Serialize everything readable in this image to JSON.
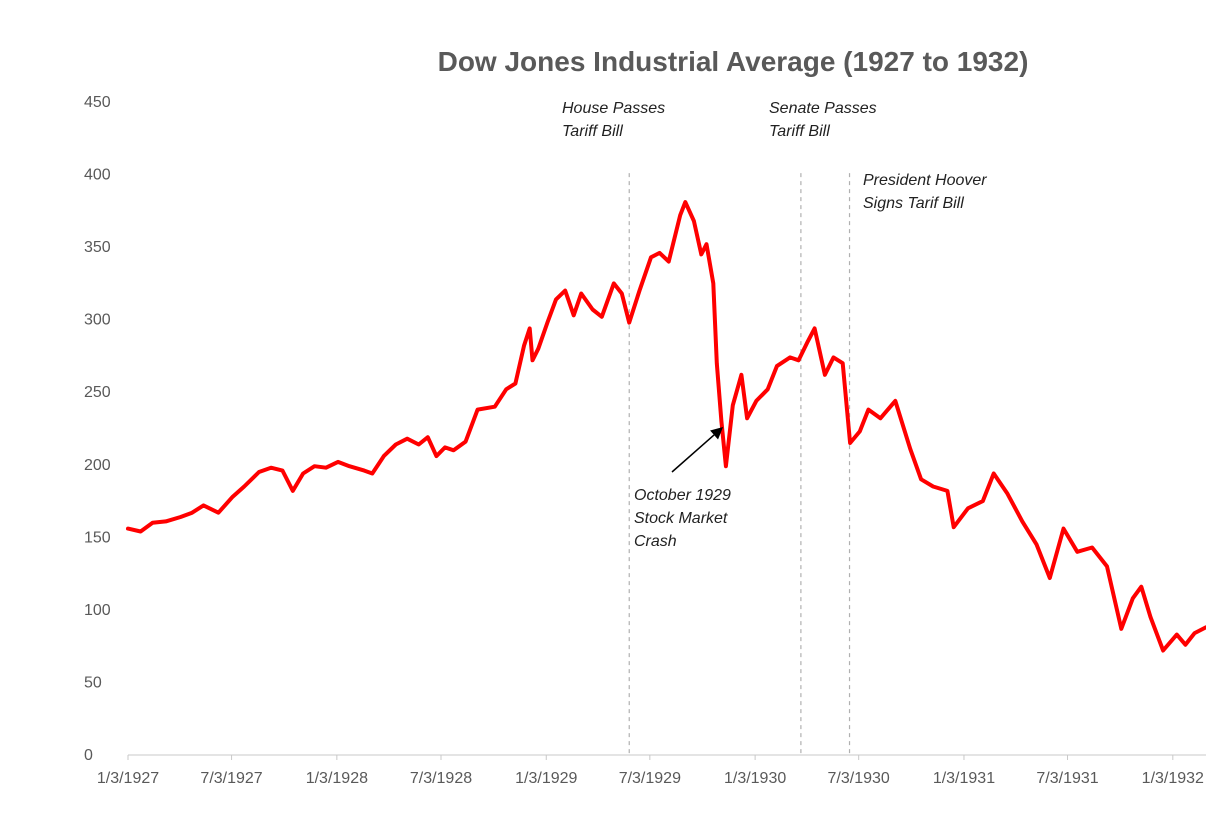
{
  "chart_data": {
    "type": "line",
    "title": "Dow Jones Industrial Average (1927 to 1932)",
    "xlabel": "",
    "ylabel": "",
    "ylim": [
      0,
      450
    ],
    "yticks": [
      "0",
      "50",
      "100",
      "150",
      "200",
      "250",
      "300",
      "350",
      "400",
      "450"
    ],
    "xlim": [
      "1927-01-03",
      "1932-03-01"
    ],
    "xticks": [
      {
        "date": "1927-01-03",
        "label": "1/3/1927"
      },
      {
        "date": "1927-07-03",
        "label": "7/3/1927"
      },
      {
        "date": "1928-01-03",
        "label": "1/3/1928"
      },
      {
        "date": "1928-07-03",
        "label": "7/3/1928"
      },
      {
        "date": "1929-01-03",
        "label": "1/3/1929"
      },
      {
        "date": "1929-07-03",
        "label": "7/3/1929"
      },
      {
        "date": "1930-01-03",
        "label": "1/3/1930"
      },
      {
        "date": "1930-07-03",
        "label": "7/3/1930"
      },
      {
        "date": "1931-01-03",
        "label": "1/3/1931"
      },
      {
        "date": "1931-07-03",
        "label": "7/3/1931"
      },
      {
        "date": "1932-01-03",
        "label": "1/3/1932"
      }
    ],
    "grid": false,
    "line_color": "#ff0000",
    "series": [
      {
        "points": [
          [
            "1927-01-03",
            156
          ],
          [
            "1927-01-25",
            154
          ],
          [
            "1927-02-15",
            160
          ],
          [
            "1927-03-10",
            161
          ],
          [
            "1927-04-05",
            164
          ],
          [
            "1927-04-25",
            167
          ],
          [
            "1927-05-15",
            172
          ],
          [
            "1927-06-10",
            167
          ],
          [
            "1927-07-05",
            178
          ],
          [
            "1927-07-25",
            185
          ],
          [
            "1927-08-20",
            195
          ],
          [
            "1927-09-10",
            198
          ],
          [
            "1927-09-30",
            196
          ],
          [
            "1927-10-18",
            182
          ],
          [
            "1927-11-05",
            194
          ],
          [
            "1927-11-25",
            199
          ],
          [
            "1927-12-15",
            198
          ],
          [
            "1928-01-05",
            202
          ],
          [
            "1928-01-25",
            199
          ],
          [
            "1928-02-20",
            196
          ],
          [
            "1928-03-05",
            194
          ],
          [
            "1928-03-25",
            206
          ],
          [
            "1928-04-15",
            214
          ],
          [
            "1928-05-05",
            218
          ],
          [
            "1928-05-25",
            214
          ],
          [
            "1928-06-10",
            219
          ],
          [
            "1928-06-25",
            206
          ],
          [
            "1928-07-10",
            212
          ],
          [
            "1928-07-25",
            210
          ],
          [
            "1928-08-15",
            216
          ],
          [
            "1928-09-05",
            238
          ],
          [
            "1928-10-05",
            240
          ],
          [
            "1928-10-25",
            252
          ],
          [
            "1928-11-10",
            256
          ],
          [
            "1928-11-25",
            282
          ],
          [
            "1928-12-05",
            294
          ],
          [
            "1928-12-10",
            272
          ],
          [
            "1928-12-20",
            280
          ],
          [
            "1929-01-05",
            298
          ],
          [
            "1929-01-20",
            314
          ],
          [
            "1929-02-05",
            320
          ],
          [
            "1929-02-20",
            303
          ],
          [
            "1929-03-05",
            318
          ],
          [
            "1929-03-25",
            307
          ],
          [
            "1929-04-10",
            302
          ],
          [
            "1929-05-01",
            325
          ],
          [
            "1929-05-15",
            318
          ],
          [
            "1929-05-28",
            298
          ],
          [
            "1929-06-15",
            320
          ],
          [
            "1929-07-05",
            343
          ],
          [
            "1929-07-20",
            346
          ],
          [
            "1929-08-05",
            340
          ],
          [
            "1929-08-25",
            372
          ],
          [
            "1929-09-03",
            381
          ],
          [
            "1929-09-18",
            368
          ],
          [
            "1929-10-01",
            345
          ],
          [
            "1929-10-10",
            352
          ],
          [
            "1929-10-22",
            325
          ],
          [
            "1929-10-28",
            270
          ],
          [
            "1929-11-05",
            230
          ],
          [
            "1929-11-13",
            199
          ],
          [
            "1929-11-25",
            241
          ],
          [
            "1929-12-10",
            262
          ],
          [
            "1929-12-20",
            232
          ],
          [
            "1930-01-05",
            244
          ],
          [
            "1930-01-25",
            252
          ],
          [
            "1930-02-10",
            268
          ],
          [
            "1930-03-05",
            274
          ],
          [
            "1930-03-20",
            272
          ],
          [
            "1930-04-05",
            285
          ],
          [
            "1930-04-17",
            294
          ],
          [
            "1930-05-05",
            262
          ],
          [
            "1930-05-20",
            274
          ],
          [
            "1930-06-05",
            270
          ],
          [
            "1930-06-18",
            215
          ],
          [
            "1930-07-05",
            223
          ],
          [
            "1930-07-20",
            238
          ],
          [
            "1930-08-10",
            232
          ],
          [
            "1930-09-05",
            244
          ],
          [
            "1930-10-01",
            211
          ],
          [
            "1930-10-20",
            190
          ],
          [
            "1930-11-10",
            185
          ],
          [
            "1930-12-05",
            182
          ],
          [
            "1930-12-16",
            157
          ],
          [
            "1931-01-10",
            170
          ],
          [
            "1931-02-05",
            175
          ],
          [
            "1931-02-24",
            194
          ],
          [
            "1931-03-20",
            180
          ],
          [
            "1931-04-15",
            161
          ],
          [
            "1931-05-10",
            145
          ],
          [
            "1931-06-02",
            122
          ],
          [
            "1931-06-26",
            156
          ],
          [
            "1931-07-20",
            140
          ],
          [
            "1931-08-15",
            143
          ],
          [
            "1931-09-10",
            130
          ],
          [
            "1931-10-05",
            87
          ],
          [
            "1931-10-25",
            108
          ],
          [
            "1931-11-09",
            116
          ],
          [
            "1931-11-25",
            95
          ],
          [
            "1931-12-17",
            72
          ],
          [
            "1932-01-10",
            83
          ],
          [
            "1932-01-25",
            76
          ],
          [
            "1932-02-10",
            84
          ],
          [
            "1932-03-01",
            88
          ]
        ]
      }
    ],
    "vlines": [
      {
        "date": "1929-05-28"
      },
      {
        "date": "1930-03-24"
      },
      {
        "date": "1930-06-17"
      }
    ],
    "annotations": [
      {
        "lines": [
          "House Passes",
          "Tariff Bill"
        ]
      },
      {
        "lines": [
          "Senate Passes",
          "Tariff Bill"
        ]
      },
      {
        "lines": [
          "President Hoover",
          "Signs Tarif Bill"
        ]
      },
      {
        "lines": [
          "October 1929",
          "Stock Market",
          "Crash"
        ],
        "arrow_to": [
          "1929-11-08",
          226
        ]
      }
    ]
  }
}
